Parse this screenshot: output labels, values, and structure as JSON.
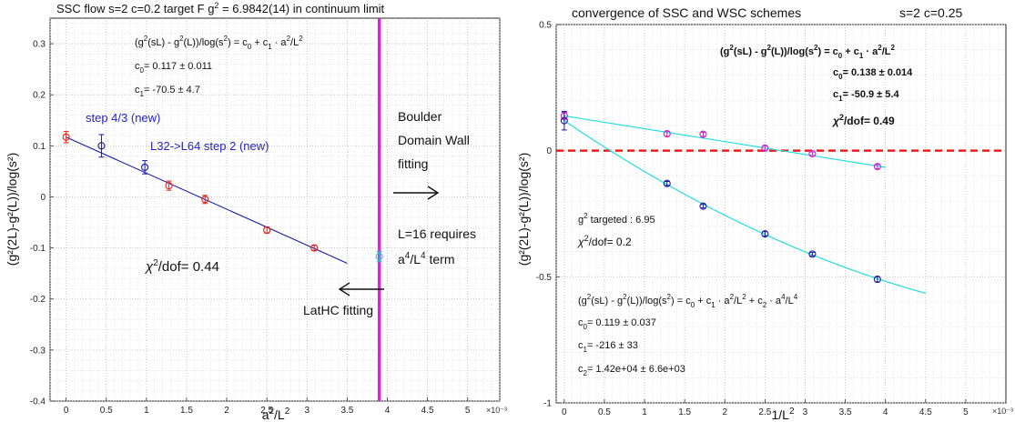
{
  "chart_data": [
    {
      "type": "scatter",
      "title": "SSC flow  s=2   c=0.2    target F   g² = 6.9842(14)  in continuum limit",
      "title_parts": {
        "a": "SSC flow  s=2   c=0.2    target F   g",
        "sup": "2",
        "b": " = 6.9842(14)  in continuum limit"
      },
      "xlabel": {
        "base": "a",
        "sup1": "2",
        "mid": "/L",
        "sup2": "2"
      },
      "ylabel": "(g²(2L)-g²(L))/log(s²)",
      "x_multiplier": "×10⁻³",
      "xlim": [
        -0.0002,
        0.0054
      ],
      "ylim": [
        -0.4,
        0.35
      ],
      "xticks": [
        0,
        0.0005,
        0.001,
        0.0015,
        0.002,
        0.0025,
        0.003,
        0.0035,
        0.004,
        0.0045,
        0.005
      ],
      "xtick_labels": [
        "0",
        "0.5",
        "1",
        "1.5",
        "2",
        "2.5",
        "3",
        "3.5",
        "4",
        "4.5",
        "5"
      ],
      "yticks": [
        -0.4,
        -0.3,
        -0.2,
        -0.1,
        0,
        0.1,
        0.2,
        0.3
      ],
      "ytick_labels": [
        "-0.4",
        "-0.3",
        "-0.2",
        "-0.1",
        "0",
        "0.1",
        "0.2",
        "0.3"
      ],
      "grid": true,
      "series": [
        {
          "name": "",
          "color": "#e8201a",
          "points": [
            {
              "x": 0,
              "y": 0.117,
              "err": 0.011
            },
            {
              "x": 0.00128,
              "y": 0.022,
              "err": 0.009
            },
            {
              "x": 0.00173,
              "y": -0.005,
              "err": 0.008
            },
            {
              "x": 0.0025,
              "y": -0.065,
              "err": 0.006
            },
            {
              "x": 0.00309,
              "y": -0.1,
              "err": 0.005
            }
          ]
        },
        {
          "name": "step 4/3 (new)",
          "color": "#1a1aa8",
          "points": [
            {
              "x": 0.00044,
              "y": 0.1,
              "err": 0.022
            },
            {
              "x": 0.00098,
              "y": 0.058,
              "err": 0.013
            }
          ]
        },
        {
          "name": "",
          "color": "#33bbdd",
          "points": [
            {
              "x": 0.0039,
              "y": -0.117,
              "err": 0.01
            }
          ]
        }
      ],
      "fit_line": {
        "color": "#1a1aa8",
        "x": [
          0,
          0.0035
        ],
        "y": [
          0.117,
          -0.13
        ]
      },
      "vline": {
        "x": 0.0039,
        "color": "#dd22dd"
      },
      "annotations": {
        "formula": {
          "p1": "(g",
          "s1": "2",
          "p2": "(sL) - g",
          "s2": "2",
          "p3": "(L))/log(s",
          "s3": "2",
          "p4": ") = c",
          "sb1": "0",
          "p5": " + c",
          "sb2": "1",
          "p6": " · a",
          "s4": "2",
          "p7": "/L",
          "s5": "2"
        },
        "c0": {
          "name": "c",
          "sub": "0",
          "value": "=  0.117 ± 0.011"
        },
        "c1": {
          "name": "c",
          "sub": "1",
          "value": "=  -70.5 ± 4.7"
        },
        "step_label": "step 4/3 (new)",
        "l32_label": "L32->L64 step 2 (new)",
        "chi2": {
          "chi": "χ",
          "sup": "2",
          "rest": "/dof= 0.44"
        },
        "boulder": [
          "Boulder",
          "Domain Wall",
          "fitting"
        ],
        "l16": {
          "line1": "L=16 requires",
          "a": "a",
          "sa": "4",
          "mid": "/L",
          "sb": "4",
          "rest": " term"
        },
        "lathc": "LatHC fitting"
      }
    },
    {
      "type": "scatter",
      "title": "convergence of SSC and WSC schemes",
      "title_right": "s=2   c=0.25",
      "xlabel": {
        "base": "1/L",
        "sup": "2"
      },
      "ylabel": "(g²(2L)-g²(L))/log(s²)",
      "x_multiplier": "×10⁻³",
      "xlim": [
        -0.0001,
        0.0055
      ],
      "ylim": [
        -1,
        0.5
      ],
      "xticks": [
        0,
        0.0005,
        0.001,
        0.0015,
        0.002,
        0.0025,
        0.003,
        0.0035,
        0.004,
        0.0045,
        0.005
      ],
      "xtick_labels": [
        "0",
        "0.5",
        "1",
        "1.5",
        "2",
        "2.5",
        "3",
        "3.5",
        "4",
        "4.5",
        "5"
      ],
      "yticks": [
        -1,
        -0.5,
        0,
        0.5
      ],
      "ytick_labels": [
        "-1",
        "-0.5",
        "0",
        "0.5"
      ],
      "grid": true,
      "series": [
        {
          "name": "",
          "color": "#cc22cc",
          "points": [
            {
              "x": 0,
              "y": 0.138,
              "err": 0.014
            },
            {
              "x": 0.00128,
              "y": 0.067,
              "err": 0.01
            },
            {
              "x": 0.00173,
              "y": 0.065,
              "err": 0.008
            },
            {
              "x": 0.0025,
              "y": 0.01,
              "err": 0.008
            },
            {
              "x": 0.00309,
              "y": -0.012,
              "err": 0.007
            },
            {
              "x": 0.0039,
              "y": -0.063,
              "err": 0.008
            }
          ]
        },
        {
          "name": "",
          "color": "#1a1aa8",
          "points": [
            {
              "x": 0,
              "y": 0.119,
              "err": 0.037
            },
            {
              "x": 0.00128,
              "y": -0.13,
              "err": 0.008
            },
            {
              "x": 0.00173,
              "y": -0.22,
              "err": 0.007
            },
            {
              "x": 0.0025,
              "y": -0.33,
              "err": 0.009
            },
            {
              "x": 0.00309,
              "y": -0.41,
              "err": 0.007
            },
            {
              "x": 0.0039,
              "y": -0.51,
              "err": 0.01
            }
          ]
        }
      ],
      "fit_upper": {
        "color": "#22dddd",
        "x": [
          0,
          0.004
        ],
        "y": [
          0.138,
          -0.066
        ]
      },
      "fit_lower": {
        "color": "#22dddd",
        "x_end": 0.0045,
        "c0": 0.119,
        "c1": -216,
        "c2": 14200
      },
      "hline": {
        "y": 0,
        "color": "#ee1c1c"
      },
      "annotations": {
        "formula1": {
          "p1": "(g",
          "s1": "2",
          "p2": "(sL) - g",
          "s2": "2",
          "p3": "(L))/log(s",
          "s3": "2",
          "p4": ") = c",
          "sb1": "0",
          "p5": " + c",
          "sb2": "1",
          "p6": " · a",
          "s4": "2",
          "p7": "/L",
          "s5": "2"
        },
        "c0": {
          "name": "c",
          "sub": "0",
          "value": "=  0.138 ± 0.014"
        },
        "c1": {
          "name": "c",
          "sub": "1",
          "value": "=  -50.9 ± 5.4"
        },
        "chi2_1": {
          "chi": "χ",
          "sup": "2",
          "rest": "/dof= 0.49"
        },
        "g2target": {
          "g": "g",
          "sup": "2",
          "rest": " targeted : 6.95"
        },
        "chi2_2": {
          "chi": "χ",
          "sup": "2",
          "rest": "/dof= 0.2"
        },
        "formula2": {
          "p1": "(g",
          "s1": "2",
          "p2": "(sL) - g",
          "s2": "2",
          "p3": "(L))/log(s",
          "s3": "2",
          "p4": ") = c",
          "sb1": "0",
          "p5": " + c",
          "sb2": "1",
          "p6": " · a",
          "s4": "2",
          "p7": "/L",
          "s5": "2",
          "p8": " + c",
          "sb3": "2",
          "p9": " · a",
          "s6": "4",
          "p10": "/L",
          "s7": "4"
        },
        "c0b": {
          "name": "c",
          "sub": "0",
          "value": "=  0.119 ± 0.037"
        },
        "c1b": {
          "name": "c",
          "sub": "1",
          "value": "=  -216 ± 33"
        },
        "c2b": {
          "name": "c",
          "sub": "2",
          "value": "=  1.42e+04 ± 6.6e+03"
        }
      }
    }
  ]
}
